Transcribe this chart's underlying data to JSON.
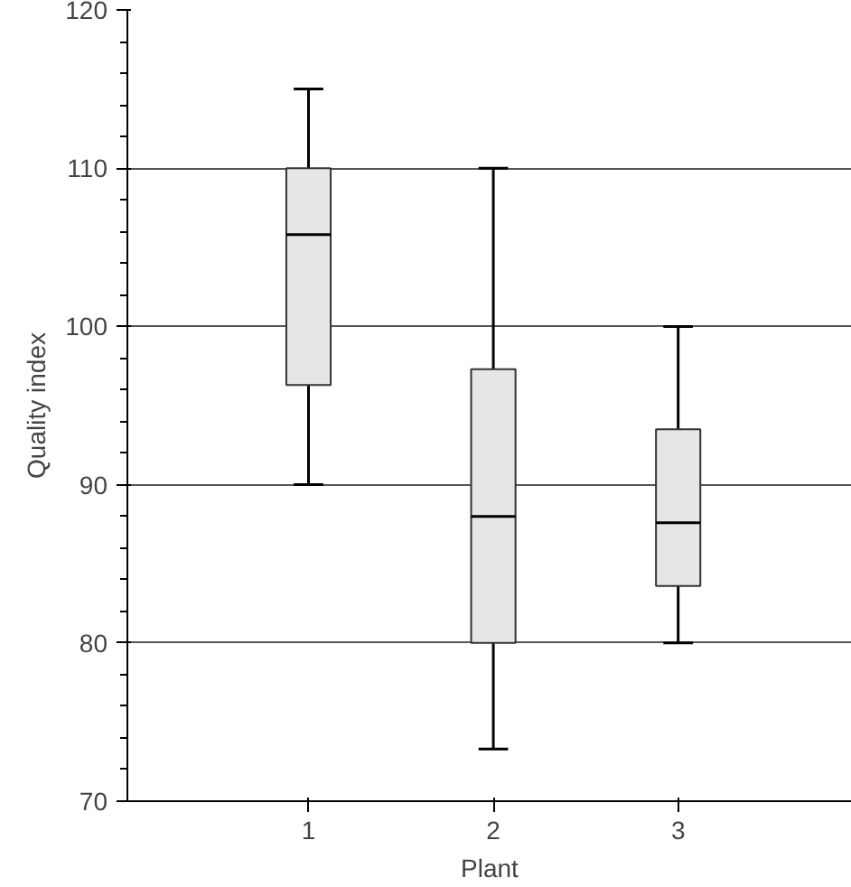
{
  "chart_data": {
    "type": "box",
    "xlabel": "Plant",
    "ylabel": "Quality index",
    "categories": [
      "1",
      "2",
      "3"
    ],
    "boxes": [
      {
        "low": 90,
        "q1": 96.3,
        "median": 105.8,
        "q3": 110,
        "high": 115
      },
      {
        "low": 73.3,
        "q1": 80,
        "median": 88,
        "q3": 97.3,
        "high": 110
      },
      {
        "low": 80,
        "q1": 83.6,
        "median": 87.6,
        "q3": 93.5,
        "high": 100
      }
    ],
    "color": "#e6e6e6",
    "ylim": [
      70,
      120
    ],
    "yticks": [
      70,
      80,
      90,
      100,
      110,
      120
    ],
    "grid": "y"
  }
}
